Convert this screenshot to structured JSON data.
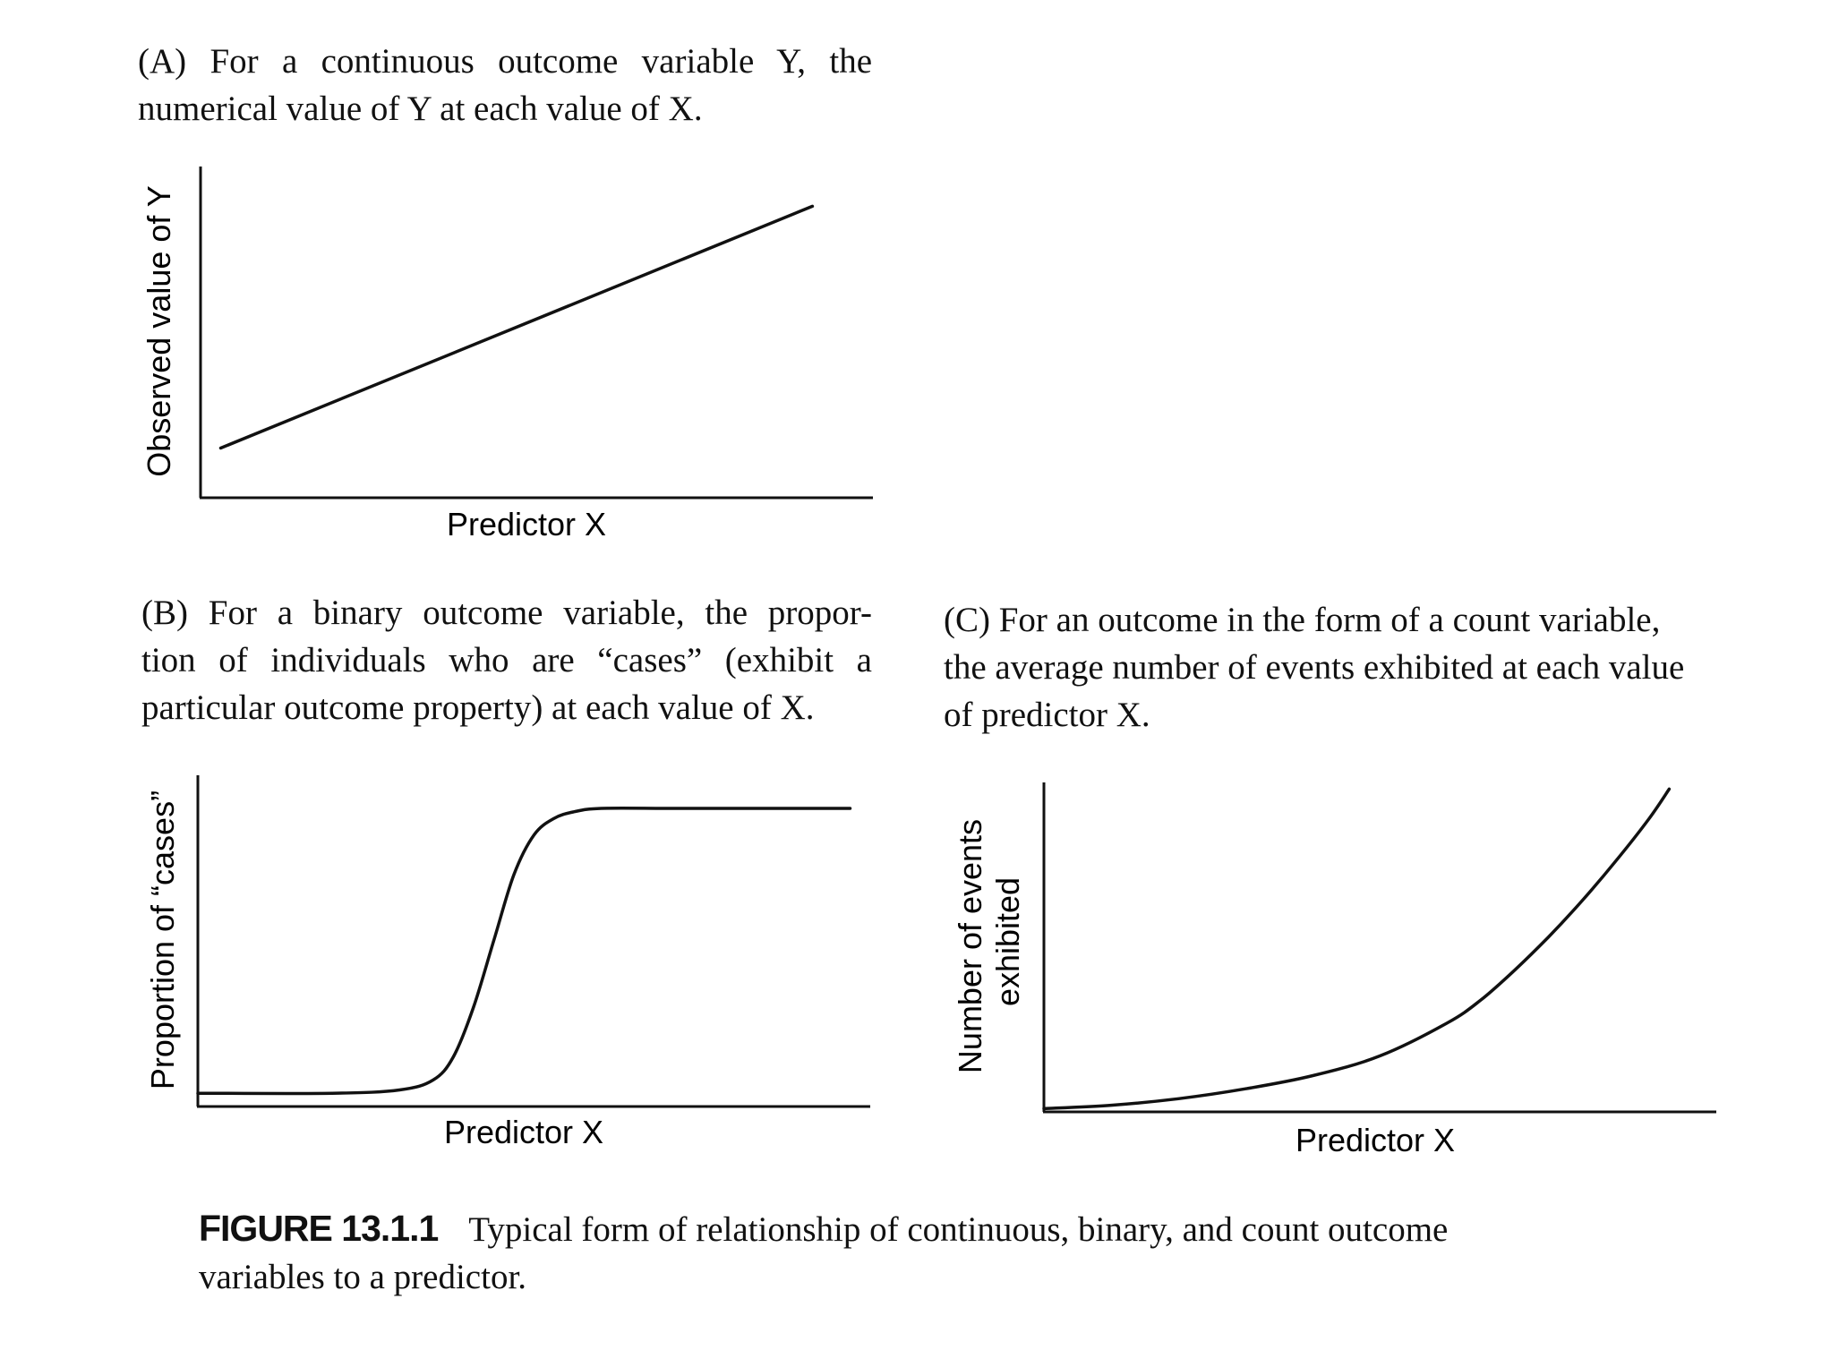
{
  "panels": {
    "a": {
      "caption_lines": [
        "(A) For a continuous outcome variable Y, the",
        "numerical value of Y at each value of X."
      ],
      "ylabel": "Observed value of Y",
      "xlabel": "Predictor X"
    },
    "b": {
      "caption_lines": [
        "(B) For a binary outcome variable, the propor-",
        "tion of individuals who are “cases” (exhibit a",
        "particular outcome property) at each value of X."
      ],
      "ylabel": "Proportion of “cases”",
      "xlabel": "Predictor X"
    },
    "c": {
      "caption_lines": [
        "(C) For an outcome in the form of a count variable,",
        "the average number of events exhibited at each value",
        "of predictor X."
      ],
      "ylabel_lines": [
        "Number of events",
        "exhibited"
      ],
      "xlabel": "Predictor X"
    }
  },
  "figure_caption": {
    "number": "FIGURE 13.1.1",
    "text": "Typical form of relationship of continuous, binary, and count outcome variables to a predictor."
  },
  "chart_data": [
    {
      "type": "line",
      "id": "a",
      "xlabel": "Predictor X",
      "ylabel": "Observed value of Y",
      "xlim": [
        0,
        1
      ],
      "ylim": [
        0,
        1
      ],
      "grid": false,
      "series": [
        {
          "x": [
            0.03,
            0.91
          ],
          "y": [
            0.15,
            0.88
          ]
        }
      ],
      "line_color": "#111111"
    },
    {
      "type": "line",
      "id": "b",
      "xlabel": "Predictor X",
      "ylabel": "Proportion of “cases”",
      "xlim": [
        0,
        1
      ],
      "ylim": [
        0,
        1
      ],
      "grid": false,
      "series": [
        {
          "x": [
            0,
            0.2,
            0.3,
            0.35,
            0.38,
            0.41,
            0.44,
            0.47,
            0.5,
            0.53,
            0.56,
            0.6,
            0.7,
            0.8,
            0.97
          ],
          "y": [
            0.04,
            0.04,
            0.05,
            0.08,
            0.15,
            0.3,
            0.5,
            0.7,
            0.82,
            0.87,
            0.89,
            0.9,
            0.9,
            0.9,
            0.9
          ]
        }
      ],
      "line_color": "#111111"
    },
    {
      "type": "line",
      "id": "c",
      "xlabel": "Predictor X",
      "ylabel": "Number of events exhibited",
      "xlim": [
        0,
        1
      ],
      "ylim": [
        0,
        1
      ],
      "grid": false,
      "series": [
        {
          "x": [
            0,
            0.1,
            0.2,
            0.3,
            0.4,
            0.5,
            0.6,
            0.65,
            0.7,
            0.75,
            0.8,
            0.85,
            0.9,
            0.93
          ],
          "y": [
            0.01,
            0.02,
            0.04,
            0.07,
            0.11,
            0.17,
            0.27,
            0.34,
            0.43,
            0.53,
            0.64,
            0.76,
            0.89,
            0.98
          ]
        }
      ],
      "line_color": "#111111"
    }
  ]
}
